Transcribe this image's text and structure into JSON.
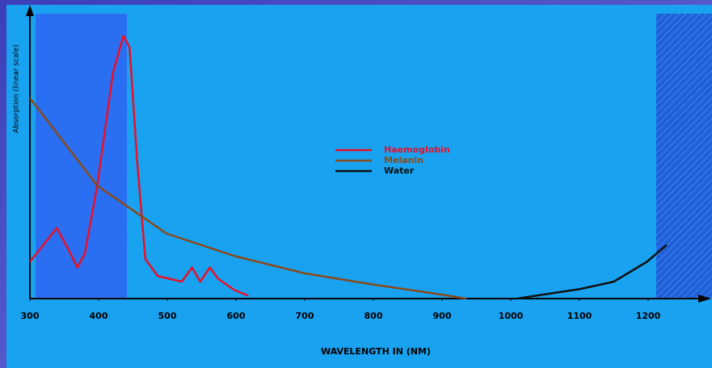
{
  "chart_data": {
    "type": "line",
    "xlabel": "WAVELENGTH IN (NM)",
    "ylabel": "Absorption (linear scale)",
    "xlim": [
      300,
      1280
    ],
    "xticks": [
      300,
      400,
      500,
      600,
      700,
      800,
      900,
      1000,
      1100,
      1200
    ],
    "ylim": [
      0,
      100
    ],
    "legend": "center",
    "series": [
      {
        "name": "Haemoglobin",
        "color": "#e8102a",
        "x": [
          300,
          339,
          357,
          369,
          380,
          398,
          421,
          436,
          445,
          456,
          468,
          486,
          521,
          536,
          548,
          562,
          574,
          598,
          618
        ],
        "values": [
          13,
          25,
          17,
          11,
          16,
          40,
          80,
          93,
          89,
          49,
          14,
          8,
          6,
          11,
          6,
          11,
          7,
          3,
          1
        ]
      },
      {
        "name": "Melanin",
        "color": "#8a4a1a",
        "x": [
          300,
          398,
          499,
          599,
          699,
          799,
          900,
          935
        ],
        "values": [
          71,
          40,
          23,
          15,
          9,
          5,
          1.4,
          0
        ]
      },
      {
        "name": "Water",
        "color": "#111111",
        "x": [
          1009,
          1101,
          1150,
          1198,
          1227
        ],
        "values": [
          0,
          3.4,
          6,
          13,
          19
        ]
      }
    ]
  }
}
